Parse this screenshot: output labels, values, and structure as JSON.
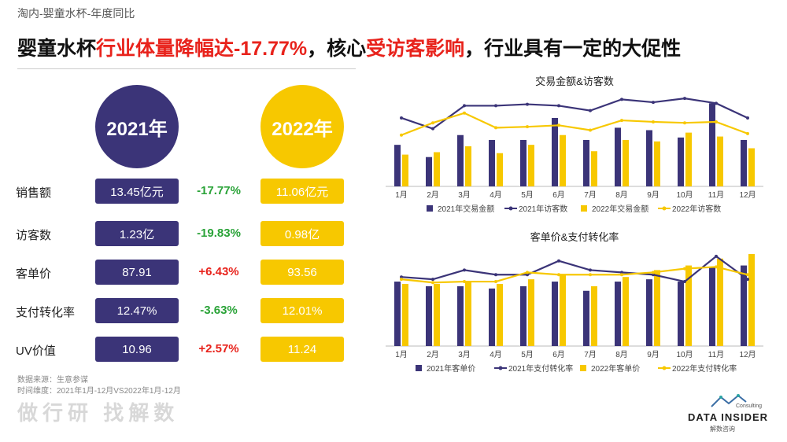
{
  "header": {
    "subtitle": "淘内-婴童水杯-年度同比",
    "headline_parts": [
      "婴童水杯",
      "行业体量降幅达-17.77%",
      "，核心",
      "受访客影响",
      "，行业具有一定的大促性"
    ]
  },
  "years": {
    "y2021": "2021年",
    "y2022": "2022年"
  },
  "metrics": [
    {
      "label": "销售额",
      "v2021": "13.45亿元",
      "change": "-17.77%",
      "v2022": "11.06亿元"
    },
    {
      "label": "访客数",
      "v2021": "1.23亿",
      "change": "-19.83%",
      "v2022": "0.98亿"
    },
    {
      "label": "客单价",
      "v2021": "87.91",
      "change": "+6.43%",
      "v2022": "93.56"
    },
    {
      "label": "支付转化率",
      "v2021": "12.47%",
      "change": "-3.63%",
      "v2022": "12.01%"
    },
    {
      "label": "UV价值",
      "v2021": "10.96",
      "change": "+2.57%",
      "v2022": "11.24"
    }
  ],
  "footer": {
    "source_line1": "数据来源：生意参谋",
    "source_line2": "时间维度：2021年1月-12月VS2022年1月-12月",
    "watermark": "做行研 找解数",
    "logo_name": "DATA INSIDER",
    "logo_sub": "解数咨询",
    "logo_consult": "Consulting"
  },
  "colors": {
    "navy": "#3b3478",
    "yellow": "#f7c800",
    "red": "#e8231c",
    "green": "#2aa338"
  },
  "chart_data": [
    {
      "type": "bar",
      "title": "交易金额&访客数",
      "categories": [
        "1月",
        "2月",
        "3月",
        "4月",
        "5月",
        "6月",
        "7月",
        "8月",
        "9月",
        "10月",
        "11月",
        "12月"
      ],
      "series": [
        {
          "name": "2021年交易金额",
          "kind": "bar",
          "values": [
            0.85,
            0.6,
            1.05,
            0.95,
            0.95,
            1.4,
            0.95,
            1.2,
            1.15,
            1.0,
            1.7,
            0.95
          ]
        },
        {
          "name": "2021年访客数",
          "kind": "line",
          "values": [
            1.4,
            1.18,
            1.65,
            1.65,
            1.68,
            1.65,
            1.55,
            1.78,
            1.72,
            1.8,
            1.7,
            1.4
          ]
        },
        {
          "name": "2022年交易金额",
          "kind": "bar",
          "values": [
            0.65,
            0.7,
            0.82,
            0.68,
            0.85,
            1.05,
            0.72,
            0.95,
            0.92,
            1.1,
            1.02,
            0.78
          ]
        },
        {
          "name": "2022年访客数",
          "kind": "line",
          "values": [
            1.05,
            1.3,
            1.5,
            1.2,
            1.22,
            1.25,
            1.15,
            1.35,
            1.32,
            1.3,
            1.32,
            1.08
          ]
        }
      ]
    },
    {
      "type": "bar",
      "title": "客单价&支付转化率",
      "categories": [
        "1月",
        "2月",
        "3月",
        "4月",
        "5月",
        "6月",
        "7月",
        "8月",
        "9月",
        "10月",
        "11月",
        "12月"
      ],
      "series": [
        {
          "name": "2021年客单价",
          "kind": "bar",
          "values": [
            1.4,
            1.3,
            1.3,
            1.25,
            1.3,
            1.4,
            1.2,
            1.4,
            1.45,
            1.4,
            1.7,
            1.75
          ]
        },
        {
          "name": "2021年支付转化率",
          "kind": "line",
          "values": [
            1.5,
            1.45,
            1.65,
            1.55,
            1.55,
            1.85,
            1.65,
            1.6,
            1.55,
            1.4,
            1.95,
            1.45
          ]
        },
        {
          "name": "2022年客单价",
          "kind": "bar",
          "values": [
            1.35,
            1.35,
            1.4,
            1.35,
            1.45,
            1.55,
            1.3,
            1.5,
            1.65,
            1.75,
            1.9,
            2.0
          ]
        },
        {
          "name": "2022年支付转化率",
          "kind": "line",
          "values": [
            1.45,
            1.38,
            1.4,
            1.4,
            1.6,
            1.55,
            1.55,
            1.55,
            1.6,
            1.68,
            1.72,
            1.55
          ]
        }
      ]
    }
  ]
}
